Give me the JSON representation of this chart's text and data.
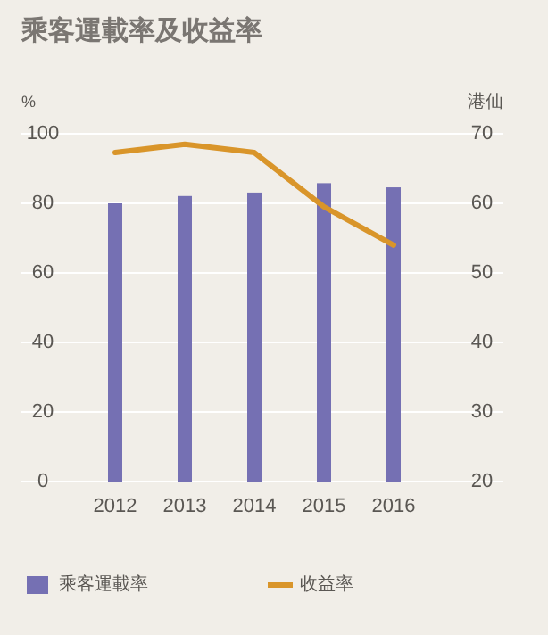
{
  "chart_data": {
    "type": "bar",
    "title": "乘客運載率及收益率",
    "ylabel": "%",
    "y2label": "港仙",
    "categories": [
      "2012",
      "2013",
      "2014",
      "2015",
      "2016"
    ],
    "series": [
      {
        "name": "乘客運載率",
        "color": "#7570b3",
        "values": [
          80.0,
          82.1,
          83.1,
          85.8,
          84.6
        ]
      },
      {
        "name": "收益率",
        "type": "line",
        "axis": "y2",
        "color": "#d9952a",
        "values": [
          67.3,
          68.5,
          67.3,
          59.5,
          54.0
        ]
      }
    ],
    "ylim": [
      0,
      100
    ],
    "yticks": [
      0,
      20,
      40,
      60,
      80,
      100
    ],
    "y2lim": [
      20,
      70
    ],
    "y2ticks": [
      20,
      30,
      40,
      50,
      60,
      70
    ],
    "grid": "y",
    "legend": "bottom"
  }
}
